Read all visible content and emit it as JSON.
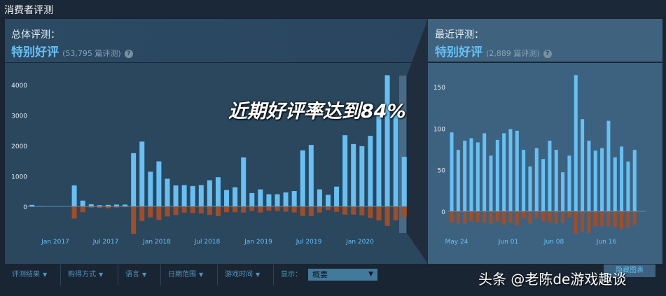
{
  "section_title": "消费者评测",
  "overall": {
    "label": "总体评测：",
    "rating": "特别好评",
    "count": "(53,795 篇评测)",
    "help": "?"
  },
  "recent": {
    "label": "最近评测：",
    "rating": "特别好评",
    "count": "(2,889 篇评测)",
    "help": "?"
  },
  "overlay_caption": "近期好评率达到84%",
  "watermark": "头条 @老陈de游戏趣谈",
  "filters": {
    "items": [
      {
        "label": "评测结果"
      },
      {
        "label": "购得方式"
      },
      {
        "label": "语言"
      },
      {
        "label": "日期范围"
      },
      {
        "label": "游戏时间"
      }
    ],
    "display_label": "显示：",
    "display_value": "概要",
    "hide_button": "隐藏图表"
  },
  "colors": {
    "positive": "#66c0f4",
    "negative": "#a34c25",
    "highlight_band": "#4a6a85"
  },
  "chart_data": [
    {
      "type": "bar",
      "title": "",
      "stacked": "diverging",
      "categories": [
        "Oct 2016",
        "Nov 2016",
        "Dec 2016",
        "Jan 2017",
        "Feb 2017",
        "Mar 2017",
        "Apr 2017",
        "May 2017",
        "Jun 2017",
        "Jul 2017",
        "Aug 2017",
        "Sep 2017",
        "Oct 2017",
        "Nov 2017",
        "Dec 2017",
        "Jan 2018",
        "Feb 2018",
        "Mar 2018",
        "Apr 2018",
        "May 2018",
        "Jun 2018",
        "Jul 2018",
        "Aug 2018",
        "Sep 2018",
        "Oct 2018",
        "Nov 2018",
        "Dec 2018",
        "Jan 2019",
        "Feb 2019",
        "Mar 2019",
        "Apr 2019",
        "May 2019",
        "Jun 2019",
        "Jul 2019",
        "Aug 2019",
        "Sep 2019",
        "Oct 2019",
        "Nov 2019",
        "Dec 2019",
        "Jan 2020",
        "Feb 2020",
        "Mar 2020",
        "Apr 2020",
        "May 2020",
        "Jun 2020"
      ],
      "series": [
        {
          "values": [
            50,
            10,
            0,
            0,
            0,
            690,
            190,
            70,
            40,
            50,
            60,
            60,
            1750,
            2130,
            1140,
            1480,
            910,
            690,
            700,
            670,
            700,
            860,
            960,
            540,
            630,
            1610,
            440,
            560,
            400,
            400,
            460,
            505,
            1840,
            2020,
            560,
            380,
            650,
            2340,
            2050,
            1980,
            2320,
            2990,
            4310,
            3200,
            1630
          ]
        },
        {
          "values": [
            0,
            0,
            0,
            0,
            0,
            -400,
            -190,
            -40,
            -50,
            -60,
            -40,
            -20,
            -900,
            -480,
            -360,
            -440,
            -330,
            -280,
            -200,
            -220,
            -230,
            -280,
            -320,
            -190,
            -190,
            -200,
            -150,
            -200,
            -140,
            -150,
            -170,
            -200,
            -310,
            -320,
            -200,
            -120,
            -180,
            -270,
            -270,
            -290,
            -380,
            -460,
            -640,
            -460,
            -340
          ]
        }
      ],
      "yticks": [
        0,
        1000,
        2000,
        3000,
        4000
      ],
      "xtick_labels": [
        "Jan 2017",
        "Jul 2017",
        "Jan 2018",
        "Jul 2018",
        "Jan 2019",
        "Jul 2019",
        "Jan 2020"
      ],
      "ylim": [
        -1000,
        4400
      ],
      "grid": false,
      "highlighted_range": "May 2020 – Jun 2020"
    },
    {
      "type": "bar",
      "title": "",
      "stacked": "diverging",
      "categories": [
        "May 24",
        "May 25",
        "May 26",
        "May 27",
        "May 28",
        "May 29",
        "May 30",
        "May 31",
        "Jun 01",
        "Jun 02",
        "Jun 03",
        "Jun 04",
        "Jun 05",
        "Jun 06",
        "Jun 07",
        "Jun 08",
        "Jun 09",
        "Jun 10",
        "Jun 11",
        "Jun 12",
        "Jun 13",
        "Jun 14",
        "Jun 15",
        "Jun 16",
        "Jun 17",
        "Jun 18",
        "Jun 19",
        "Jun 20",
        "Jun 21",
        "Jun 22"
      ],
      "series": [
        {
          "values": [
            95,
            74,
            85,
            88,
            83,
            94,
            67,
            86,
            94,
            99,
            97,
            74,
            54,
            76,
            63,
            85,
            74,
            47,
            67,
            164,
            111,
            85,
            73,
            76,
            109,
            65,
            78,
            60,
            74,
            0
          ]
        },
        {
          "values": [
            -13,
            -15,
            -15,
            -12,
            -13,
            -14,
            -15,
            -12,
            -16,
            -14,
            -17,
            -8,
            -15,
            -8,
            -12,
            -13,
            -15,
            -14,
            -7,
            -27,
            -25,
            -26,
            -18,
            -18,
            -18,
            -19,
            -21,
            -20,
            -16,
            0
          ]
        }
      ],
      "yticks": [
        0,
        50,
        100,
        150
      ],
      "xtick_labels": [
        "May 24",
        "Jun 01",
        "Jun 08",
        "Jun 16"
      ],
      "ylim": [
        -35,
        170
      ],
      "grid": false
    }
  ]
}
